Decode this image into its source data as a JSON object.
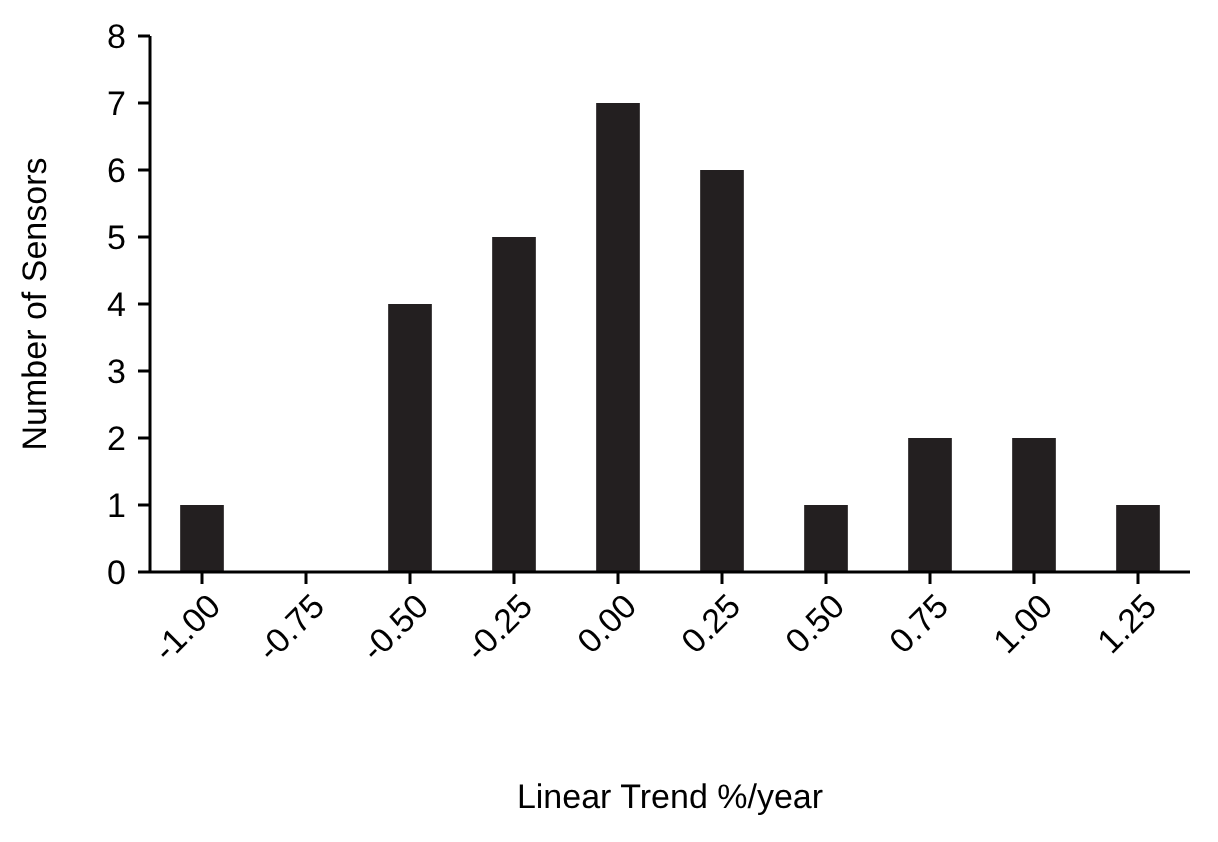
{
  "chart_data": {
    "type": "bar",
    "xlabel": "Linear Trend %/year",
    "ylabel": "Number of Sensors",
    "categories": [
      "-1.00",
      "-0.75",
      "-0.50",
      "-0.25",
      "0.00",
      "0.25",
      "0.50",
      "0.75",
      "1.00",
      "1.25"
    ],
    "values": [
      1,
      0,
      4,
      5,
      7,
      6,
      1,
      2,
      2,
      1
    ],
    "color": "#231f20",
    "ylim": [
      0,
      8
    ],
    "yticks": [
      0,
      1,
      2,
      3,
      4,
      5,
      6,
      7,
      8
    ]
  }
}
